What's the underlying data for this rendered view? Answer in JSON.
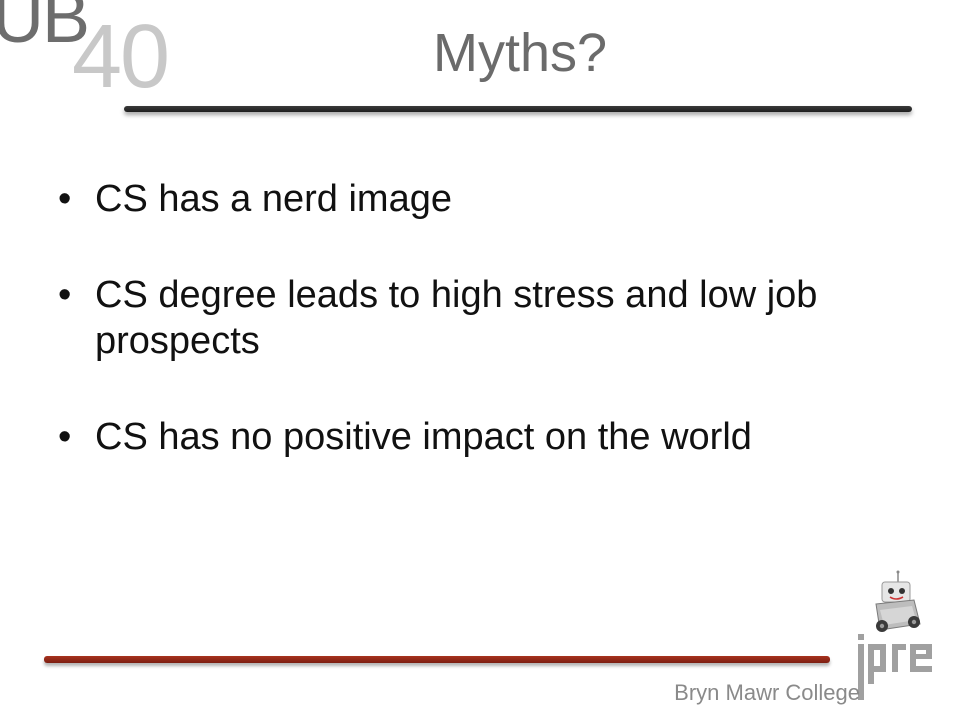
{
  "logo": {
    "ub_text": "UB",
    "number_text": "40"
  },
  "slide": {
    "title": "Myths?",
    "bullets": [
      {
        "marker": "•",
        "text": "CS has a nerd image"
      },
      {
        "marker": "•",
        "text": "CS degree leads to high stress and low job prospects"
      },
      {
        "marker": "•",
        "text": "CS has no positive impact on the world"
      }
    ],
    "footer": "Bryn Mawr College"
  },
  "icons": {
    "robot": "robot-icon",
    "ipre_logo": "ipre-logo"
  },
  "colors": {
    "title": "#6b6b6b",
    "top_rule": "#2a2a2a",
    "bottom_rule": "#8f2716",
    "footer": "#8a8a8a"
  }
}
